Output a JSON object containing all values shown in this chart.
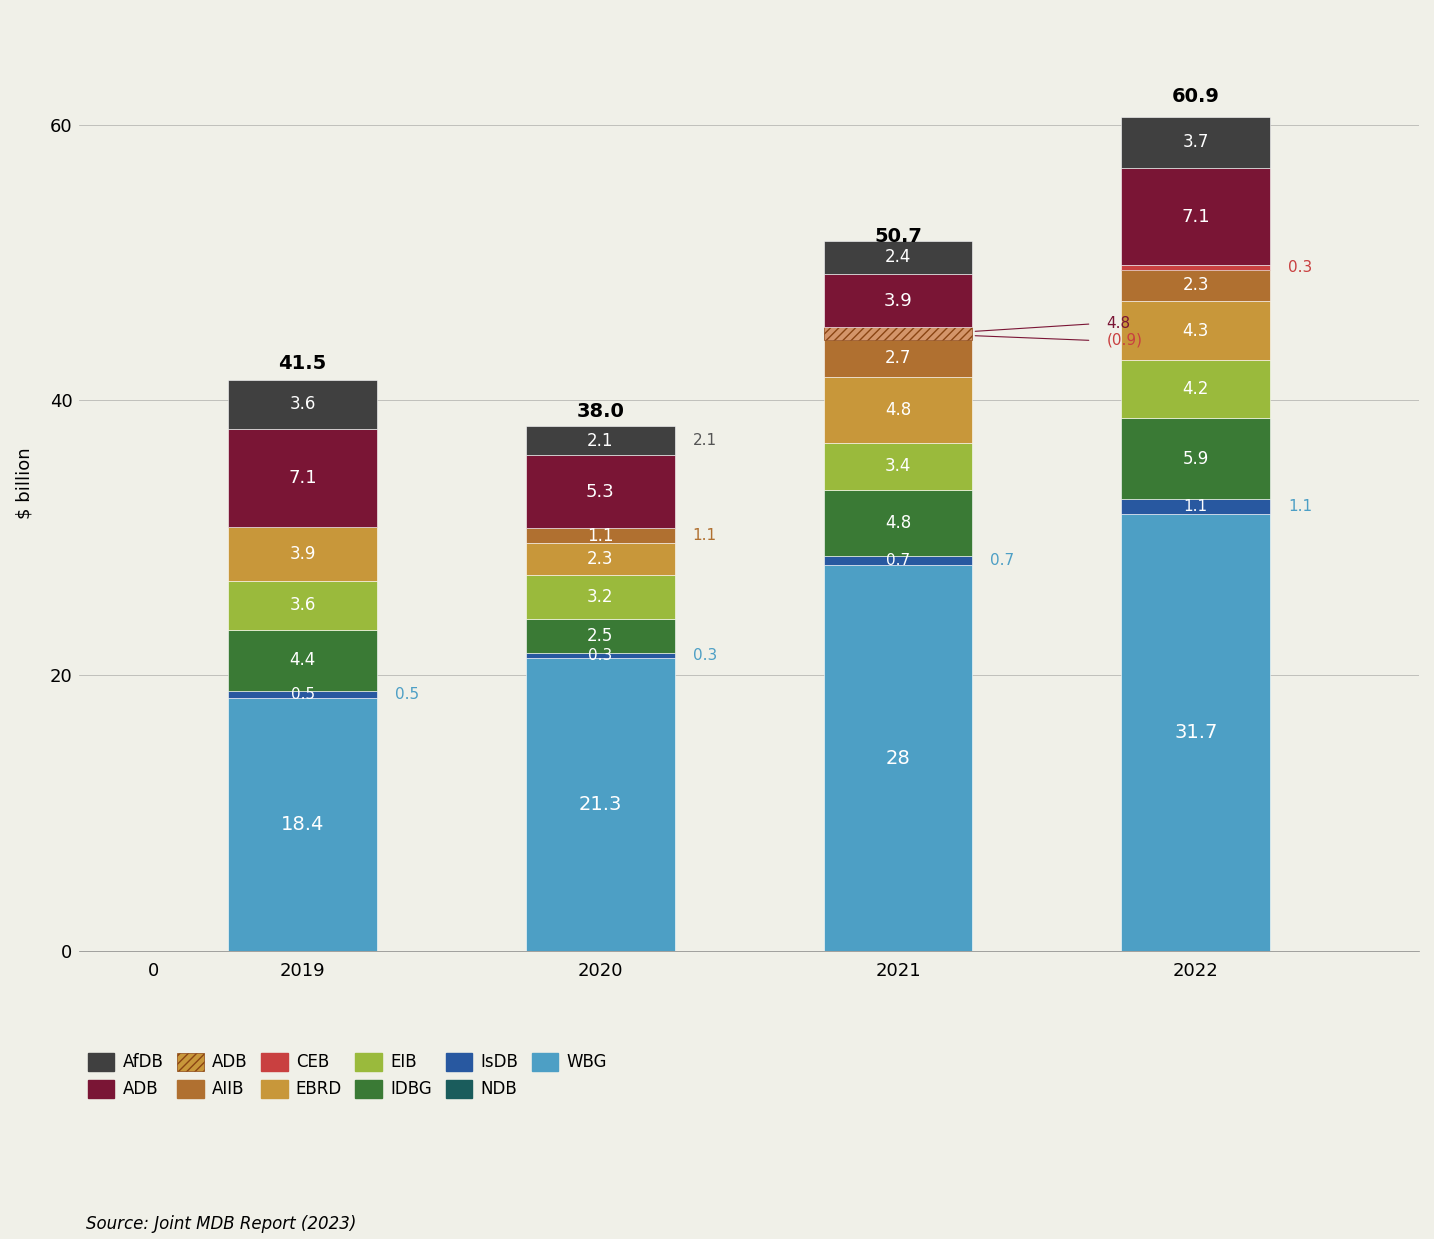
{
  "years": [
    "2019",
    "2020",
    "2021",
    "2022"
  ],
  "totals": [
    41.5,
    38.0,
    50.7,
    60.9
  ],
  "segments": {
    "WBG": [
      18.4,
      21.3,
      28.0,
      31.7
    ],
    "IsDB": [
      0.5,
      0.3,
      0.7,
      1.1
    ],
    "IDBG": [
      4.4,
      2.5,
      4.8,
      5.9
    ],
    "EIB": [
      3.6,
      3.2,
      3.4,
      4.2
    ],
    "EBRD": [
      3.9,
      2.3,
      4.8,
      4.3
    ],
    "AIIB": [
      0.0,
      1.1,
      2.7,
      2.3
    ],
    "AIIB_hatch": [
      0.0,
      0.0,
      0.9,
      0.0
    ],
    "CEB": [
      0.0,
      0.0,
      0.0,
      0.3
    ],
    "ADB": [
      7.1,
      5.3,
      3.9,
      7.1
    ],
    "AfDB": [
      3.6,
      2.1,
      2.4,
      3.7
    ],
    "NDB": [
      0.0,
      0.0,
      0.0,
      0.0
    ]
  },
  "colors": {
    "WBG": "#4d9fc5",
    "IsDB": "#2858a0",
    "IDBG": "#3a7a35",
    "EIB": "#9aba3c",
    "EBRD": "#c8973a",
    "AIIB": "#b07030",
    "AIIB_hatch": "#c8973a",
    "CEB": "#c94040",
    "ADB": "#7a1535",
    "AfDB": "#404040",
    "NDB": "#1a5c5c"
  },
  "background_color": "#f0f0e8",
  "ylabel": "$ billion",
  "ylim": [
    0,
    68
  ],
  "yticks": [
    0,
    20,
    40,
    60
  ],
  "bar_width": 0.5,
  "source": "Source: Joint MDB Report (2023)",
  "outside_annotations": {
    "IsDB_color": "#4d9fc5",
    "AIIB_2020_color": "#b07030",
    "hatch_4p8_color": "#7a1535",
    "hatch_0p9_color": "#c94040",
    "CEB_2022_color": "#c94040",
    "NDB_2020_color": "#404040",
    "NDB_2022_color": "#404040"
  },
  "legend_entries": [
    {
      "label": "AfDB",
      "color": "#404040",
      "hatch": ""
    },
    {
      "label": "ADB",
      "color": "#7a1535",
      "hatch": ""
    },
    {
      "label": "ADB",
      "color": "#c8973a",
      "hatch": "////"
    },
    {
      "label": "AIIB",
      "color": "#b07030",
      "hatch": ""
    },
    {
      "label": "CEB",
      "color": "#c94040",
      "hatch": ""
    },
    {
      "label": "EBRD",
      "color": "#c8973a",
      "hatch": ""
    },
    {
      "label": "EIB",
      "color": "#9aba3c",
      "hatch": ""
    },
    {
      "label": "IDBG",
      "color": "#3a7a35",
      "hatch": ""
    },
    {
      "label": "IsDB",
      "color": "#2858a0",
      "hatch": ""
    },
    {
      "label": "NDB",
      "color": "#1a5c5c",
      "hatch": ""
    },
    {
      "label": "WBG",
      "color": "#4d9fc5",
      "hatch": ""
    }
  ]
}
